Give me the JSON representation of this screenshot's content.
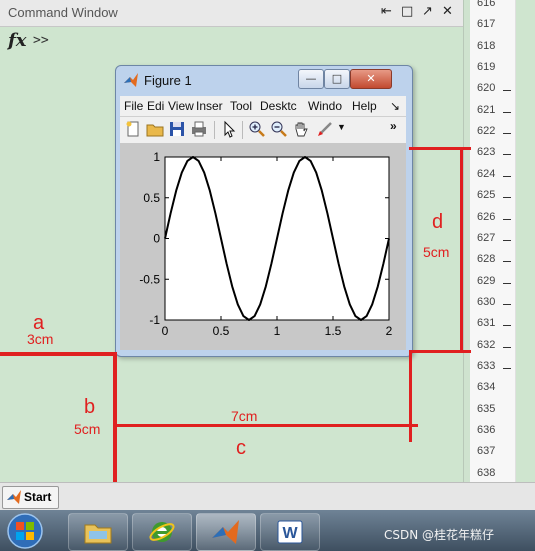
{
  "command_window": {
    "title": "Command Window",
    "controls": [
      "⇤",
      "□",
      "↗",
      "✕"
    ],
    "fx": "fx",
    "prompt": ">>"
  },
  "editor": {
    "line_numbers": [
      "616",
      "617",
      "618",
      "619",
      "620",
      "621",
      "622",
      "623",
      "624",
      "625",
      "626",
      "627",
      "628",
      "629",
      "630",
      "631",
      "632",
      "633",
      "634",
      "635",
      "636",
      "637",
      "638"
    ]
  },
  "figure": {
    "title": "Figure 1",
    "window_buttons": [
      "—",
      "□",
      "✕"
    ],
    "menus": [
      "File",
      "Edi",
      "View",
      "Inser",
      "Tool",
      "Desktc",
      "Windo",
      "Help",
      "↘"
    ],
    "toolbar_icons": [
      "new-file-icon",
      "open-folder-icon",
      "save-icon",
      "print-icon",
      "pointer-icon",
      "zoom-in-icon",
      "zoom-out-icon",
      "pan-hand-icon",
      "data-brush-icon",
      "dropdown-icon",
      "overflow-icon"
    ]
  },
  "chart_data": {
    "type": "line",
    "x": [
      0,
      0.05,
      0.1,
      0.15,
      0.2,
      0.25,
      0.3,
      0.35,
      0.4,
      0.45,
      0.5,
      0.55,
      0.6,
      0.65,
      0.7,
      0.75,
      0.8,
      0.85,
      0.9,
      0.95,
      1.0,
      1.05,
      1.1,
      1.15,
      1.2,
      1.25,
      1.3,
      1.35,
      1.4,
      1.45,
      1.5,
      1.55,
      1.6,
      1.65,
      1.7,
      1.75,
      1.8,
      1.85,
      1.9,
      1.95,
      2.0
    ],
    "series": [
      {
        "values": [
          0,
          0.309,
          0.588,
          0.809,
          0.951,
          1,
          0.951,
          0.809,
          0.588,
          0.309,
          0,
          -0.309,
          -0.588,
          -0.809,
          -0.951,
          -1,
          -0.951,
          -0.809,
          -0.588,
          -0.309,
          0,
          0.309,
          0.588,
          0.809,
          0.951,
          1,
          0.951,
          0.809,
          0.588,
          0.309,
          0,
          -0.309,
          -0.588,
          -0.809,
          -0.951,
          -1,
          -0.951,
          -0.809,
          -0.588,
          -0.309,
          0
        ]
      }
    ],
    "xlim": [
      0,
      2
    ],
    "ylim": [
      -1,
      1
    ],
    "xticks": [
      "0",
      "0.5",
      "1",
      "1.5",
      "2"
    ],
    "yticks": [
      "1",
      "0.5",
      "0",
      "-0.5",
      "-1"
    ],
    "grid": false,
    "line_color": "#000000"
  },
  "annotations": {
    "a": "a",
    "a_value": "3cm",
    "b": "b",
    "b_value": "5cm",
    "c": "c",
    "c_value": "7cm",
    "d": "d",
    "d_value": "5cm",
    "color": "#e02020"
  },
  "taskbar": {
    "start_label": "Start",
    "apps": [
      "windows-orb-icon",
      "explorer-icon",
      "ie-icon",
      "matlab-icon",
      "word-icon"
    ],
    "watermark": "CSDN @桂花年糕仔"
  }
}
